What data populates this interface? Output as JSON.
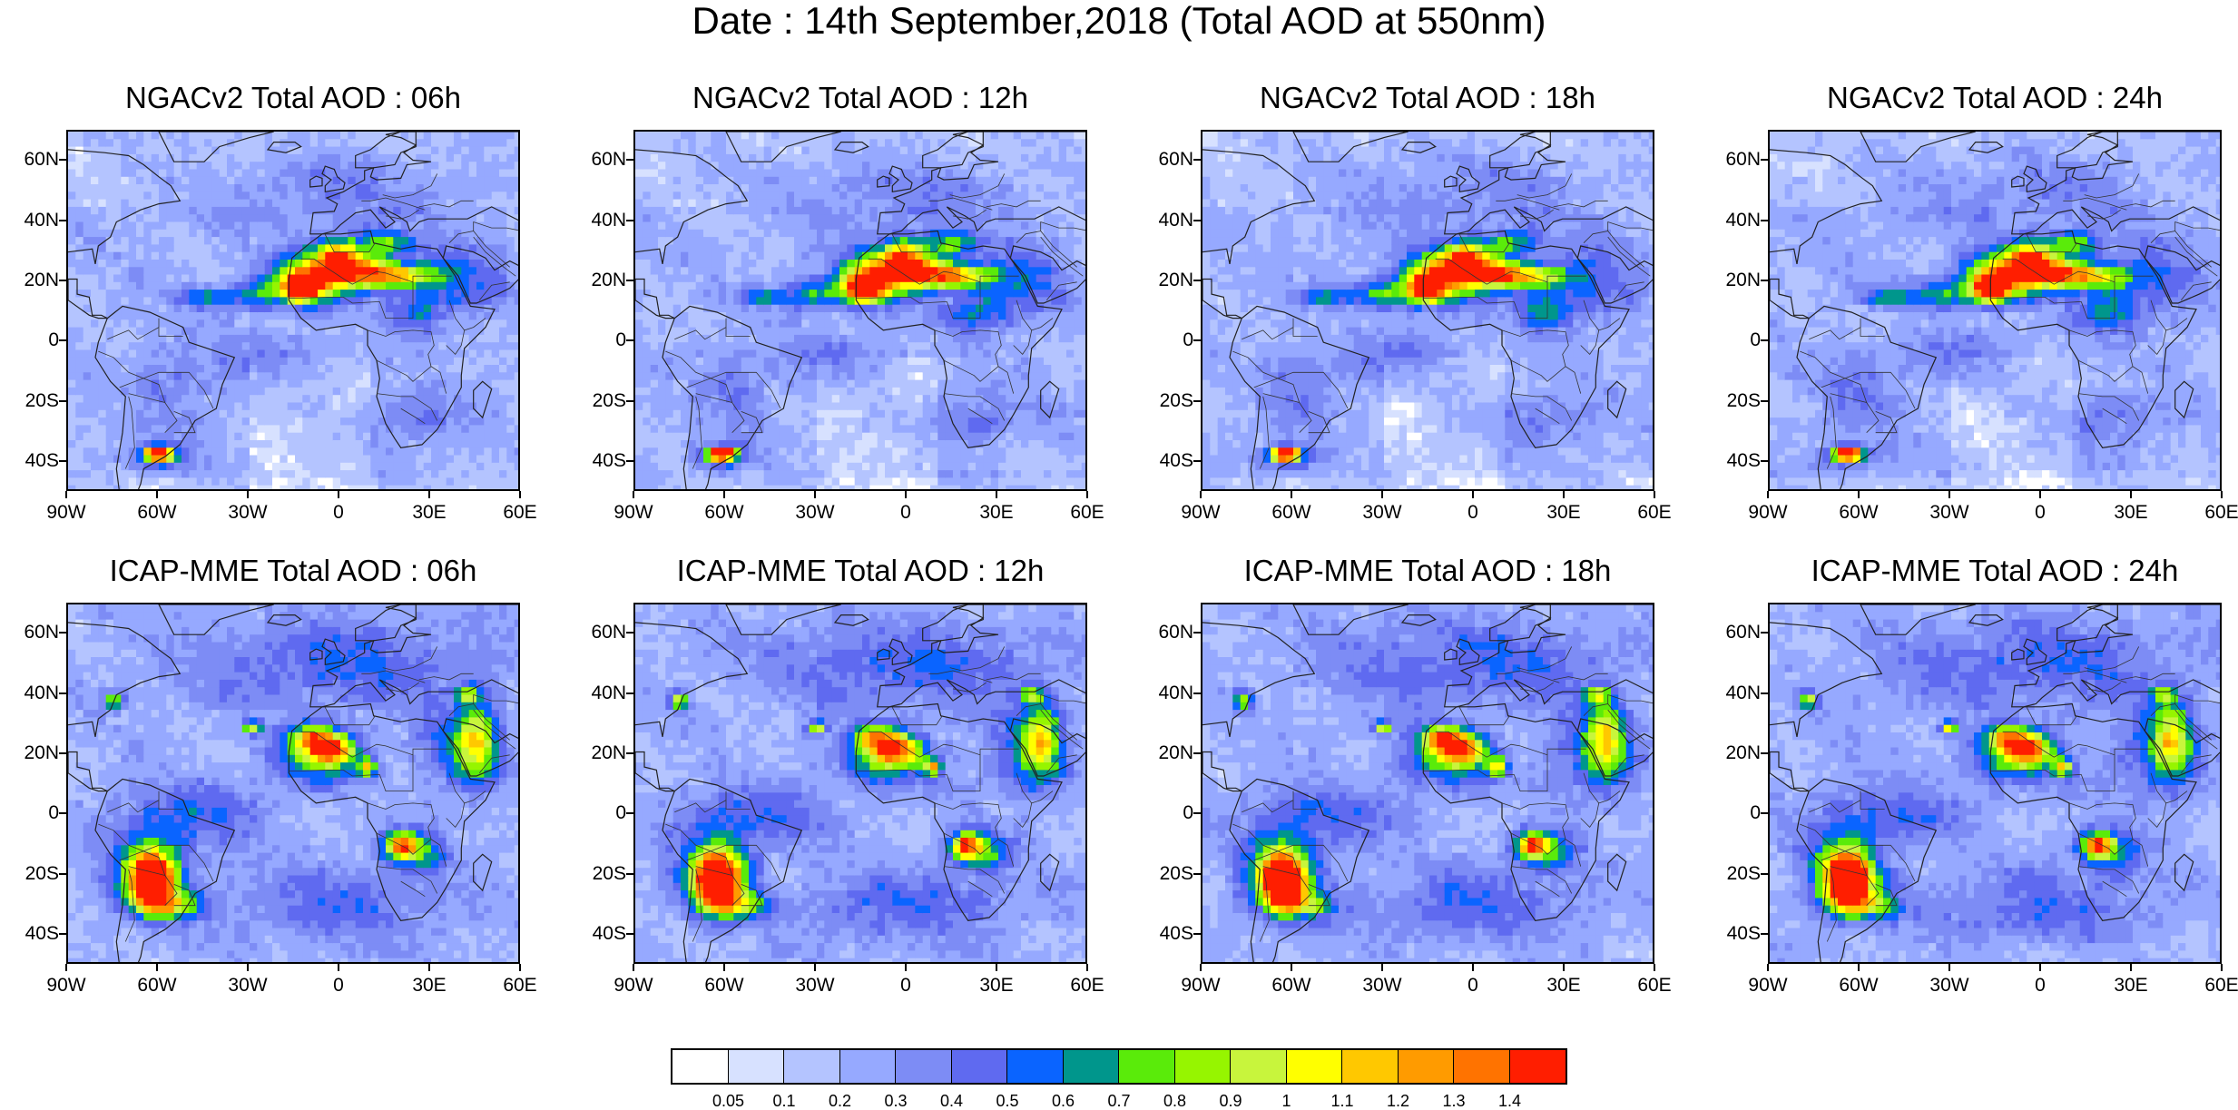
{
  "title": "Date : 14th September,2018 (Total AOD at 550nm)",
  "panels": [
    {
      "title": "NGACv2 Total AOD : 06h",
      "model": "NGAC",
      "hour": 6
    },
    {
      "title": "NGACv2 Total AOD : 12h",
      "model": "NGAC",
      "hour": 12
    },
    {
      "title": "NGACv2 Total AOD : 18h",
      "model": "NGAC",
      "hour": 18
    },
    {
      "title": "NGACv2 Total AOD : 24h",
      "model": "NGAC",
      "hour": 24
    },
    {
      "title": "ICAP-MME Total AOD : 06h",
      "model": "ICAP",
      "hour": 6
    },
    {
      "title": "ICAP-MME Total AOD : 12h",
      "model": "ICAP",
      "hour": 12
    },
    {
      "title": "ICAP-MME Total AOD : 18h",
      "model": "ICAP",
      "hour": 18
    },
    {
      "title": "ICAP-MME Total AOD : 24h",
      "model": "ICAP",
      "hour": 24
    }
  ],
  "lat_ticks": [
    "60N",
    "40N",
    "20N",
    "0",
    "20S",
    "40S"
  ],
  "lat_values": [
    60,
    40,
    20,
    0,
    -20,
    -40
  ],
  "lon_ticks": [
    "90W",
    "60W",
    "30W",
    "0",
    "30E",
    "60E"
  ],
  "lon_values": [
    -90,
    -60,
    -30,
    0,
    30,
    60
  ],
  "lat_range": [
    -50,
    70
  ],
  "lon_range": [
    -90,
    60
  ],
  "colorbar": {
    "labels": [
      "0.05",
      "0.1",
      "0.2",
      "0.3",
      "0.4",
      "0.5",
      "0.6",
      "0.7",
      "0.8",
      "0.9",
      "1",
      "1.1",
      "1.2",
      "1.3",
      "1.4"
    ],
    "colors": [
      "#ffffff",
      "#d7e1ff",
      "#b4c4ff",
      "#96a9ff",
      "#7d8cf5",
      "#5f6af0",
      "#0a64ff",
      "#00968c",
      "#5aeb0a",
      "#96f500",
      "#c8f53c",
      "#ffff00",
      "#ffc800",
      "#ff9b00",
      "#ff7300",
      "#ff1e00"
    ]
  }
}
